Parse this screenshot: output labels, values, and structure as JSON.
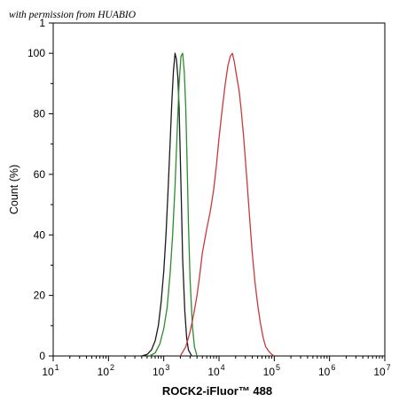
{
  "watermark": "with permission from HUABIO",
  "chart_data": {
    "type": "line",
    "xlabel": "ROCK2-iFluor™ 488",
    "ylabel": "Count  (%)",
    "x_scale": "log",
    "xlim": [
      10,
      10000000
    ],
    "ylim": [
      0,
      110
    ],
    "x_ticks": [
      {
        "value": 10,
        "base": "10",
        "exp": "1"
      },
      {
        "value": 100,
        "base": "10",
        "exp": "2"
      },
      {
        "value": 1000,
        "base": "10",
        "exp": "3"
      },
      {
        "value": 10000,
        "base": "10",
        "exp": "4"
      },
      {
        "value": 100000,
        "base": "10",
        "exp": "5"
      },
      {
        "value": 1000000,
        "base": "10",
        "exp": "6"
      },
      {
        "value": 10000000,
        "base": "10",
        "exp": "7"
      }
    ],
    "y_ticks": [
      "0",
      "20",
      "40",
      "60",
      "80",
      "100"
    ],
    "y_tick_values": [
      0,
      20,
      40,
      60,
      80,
      100
    ],
    "y_top_partial_label": "1",
    "y_top_partial_value": 110,
    "grid": false,
    "series": [
      {
        "color": "#1a1a1a",
        "x": [
          400,
          500,
          600,
          700,
          800,
          900,
          1000,
          1100,
          1200,
          1300,
          1400,
          1500,
          1600,
          1700,
          1800,
          1900,
          2000,
          2100,
          2200,
          2400,
          2600,
          2800,
          3200
        ],
        "y": [
          0,
          0.5,
          2,
          5,
          10,
          18,
          28,
          40,
          55,
          70,
          84,
          94,
          100,
          98,
          92,
          82,
          65,
          48,
          32,
          15,
          6,
          2,
          0
        ]
      },
      {
        "color": "#2e8b2e",
        "x": [
          550,
          700,
          850,
          1000,
          1150,
          1300,
          1450,
          1600,
          1750,
          1900,
          2050,
          2200,
          2350,
          2500,
          2650,
          2800,
          3000,
          3300,
          3600,
          4000
        ],
        "y": [
          0,
          1,
          4,
          9,
          16,
          27,
          40,
          56,
          74,
          90,
          99,
          100,
          94,
          82,
          64,
          44,
          25,
          10,
          3,
          0
        ]
      },
      {
        "color": "#c83a3a",
        "x": [
          2000,
          2500,
          3000,
          3500,
          4000,
          4500,
          5000,
          6000,
          7000,
          8000,
          9000,
          10000,
          11500,
          13000,
          14500,
          16000,
          17500,
          19000,
          21000,
          23000,
          25000,
          28000,
          32000,
          36000,
          40000,
          45000,
          50000,
          56000,
          63000,
          70000,
          80000,
          90000,
          100000
        ],
        "y": [
          0,
          3,
          8,
          14,
          20,
          27,
          34,
          42,
          48,
          55,
          63,
          72,
          82,
          90,
          96,
          99,
          100,
          97,
          92,
          88,
          82,
          72,
          58,
          45,
          34,
          24,
          17,
          11,
          6,
          3,
          1.5,
          0.5,
          0
        ]
      }
    ]
  }
}
